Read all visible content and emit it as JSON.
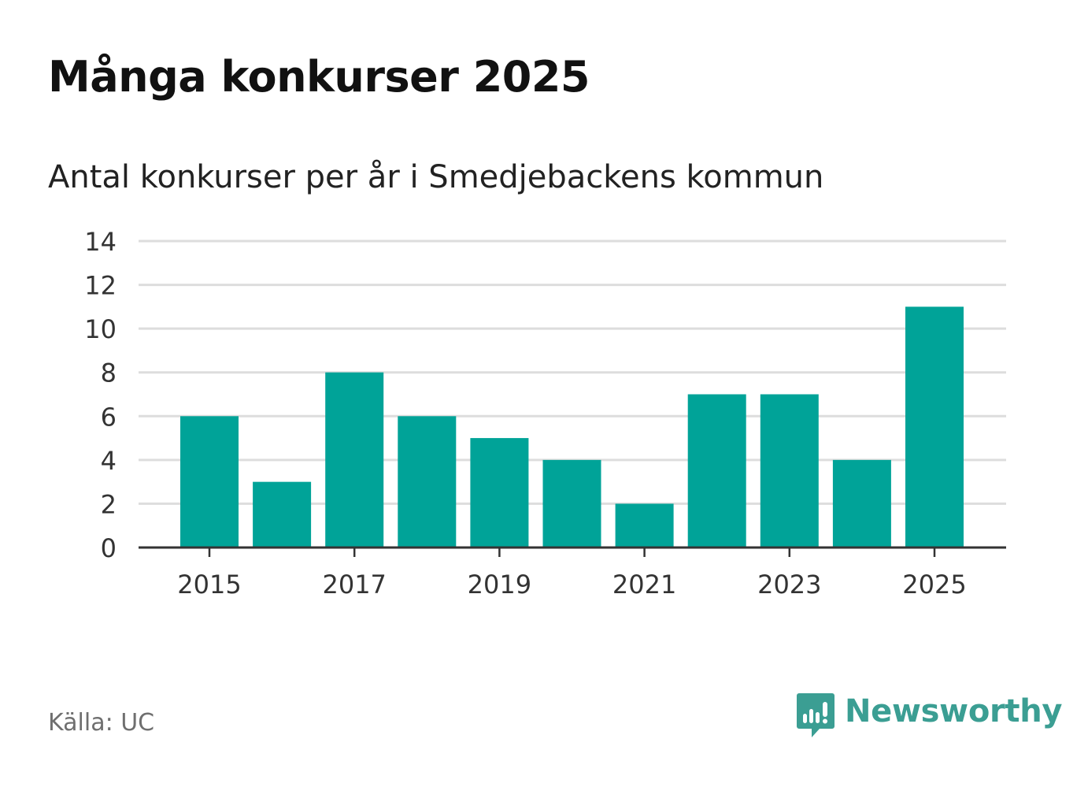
{
  "header": {
    "title": "Många konkurser 2025",
    "subtitle": "Antal konkurser per år i Smedjebackens kommun"
  },
  "footer": {
    "source": "Källa: UC",
    "brand": "Newsworthy",
    "brand_icon": "bar-chart-speech-bubble-icon"
  },
  "colors": {
    "bar": "#00a398",
    "grid": "#dddddd",
    "axis": "#333333",
    "brand": "#3b9e93"
  },
  "chart_data": {
    "type": "bar",
    "title": "Många konkurser 2025",
    "subtitle": "Antal konkurser per år i Smedjebackens kommun",
    "xlabel": "",
    "ylabel": "",
    "categories": [
      "2015",
      "2016",
      "2017",
      "2018",
      "2019",
      "2020",
      "2021",
      "2022",
      "2023",
      "2024",
      "2025"
    ],
    "values": [
      6,
      3,
      8,
      6,
      5,
      4,
      2,
      7,
      7,
      4,
      11
    ],
    "x_tick_labels": [
      "2015",
      "2017",
      "2019",
      "2021",
      "2023",
      "2025"
    ],
    "y_ticks": [
      0,
      2,
      4,
      6,
      8,
      10,
      12,
      14
    ],
    "ylim": [
      0,
      14
    ],
    "grid": true,
    "legend": "none"
  }
}
